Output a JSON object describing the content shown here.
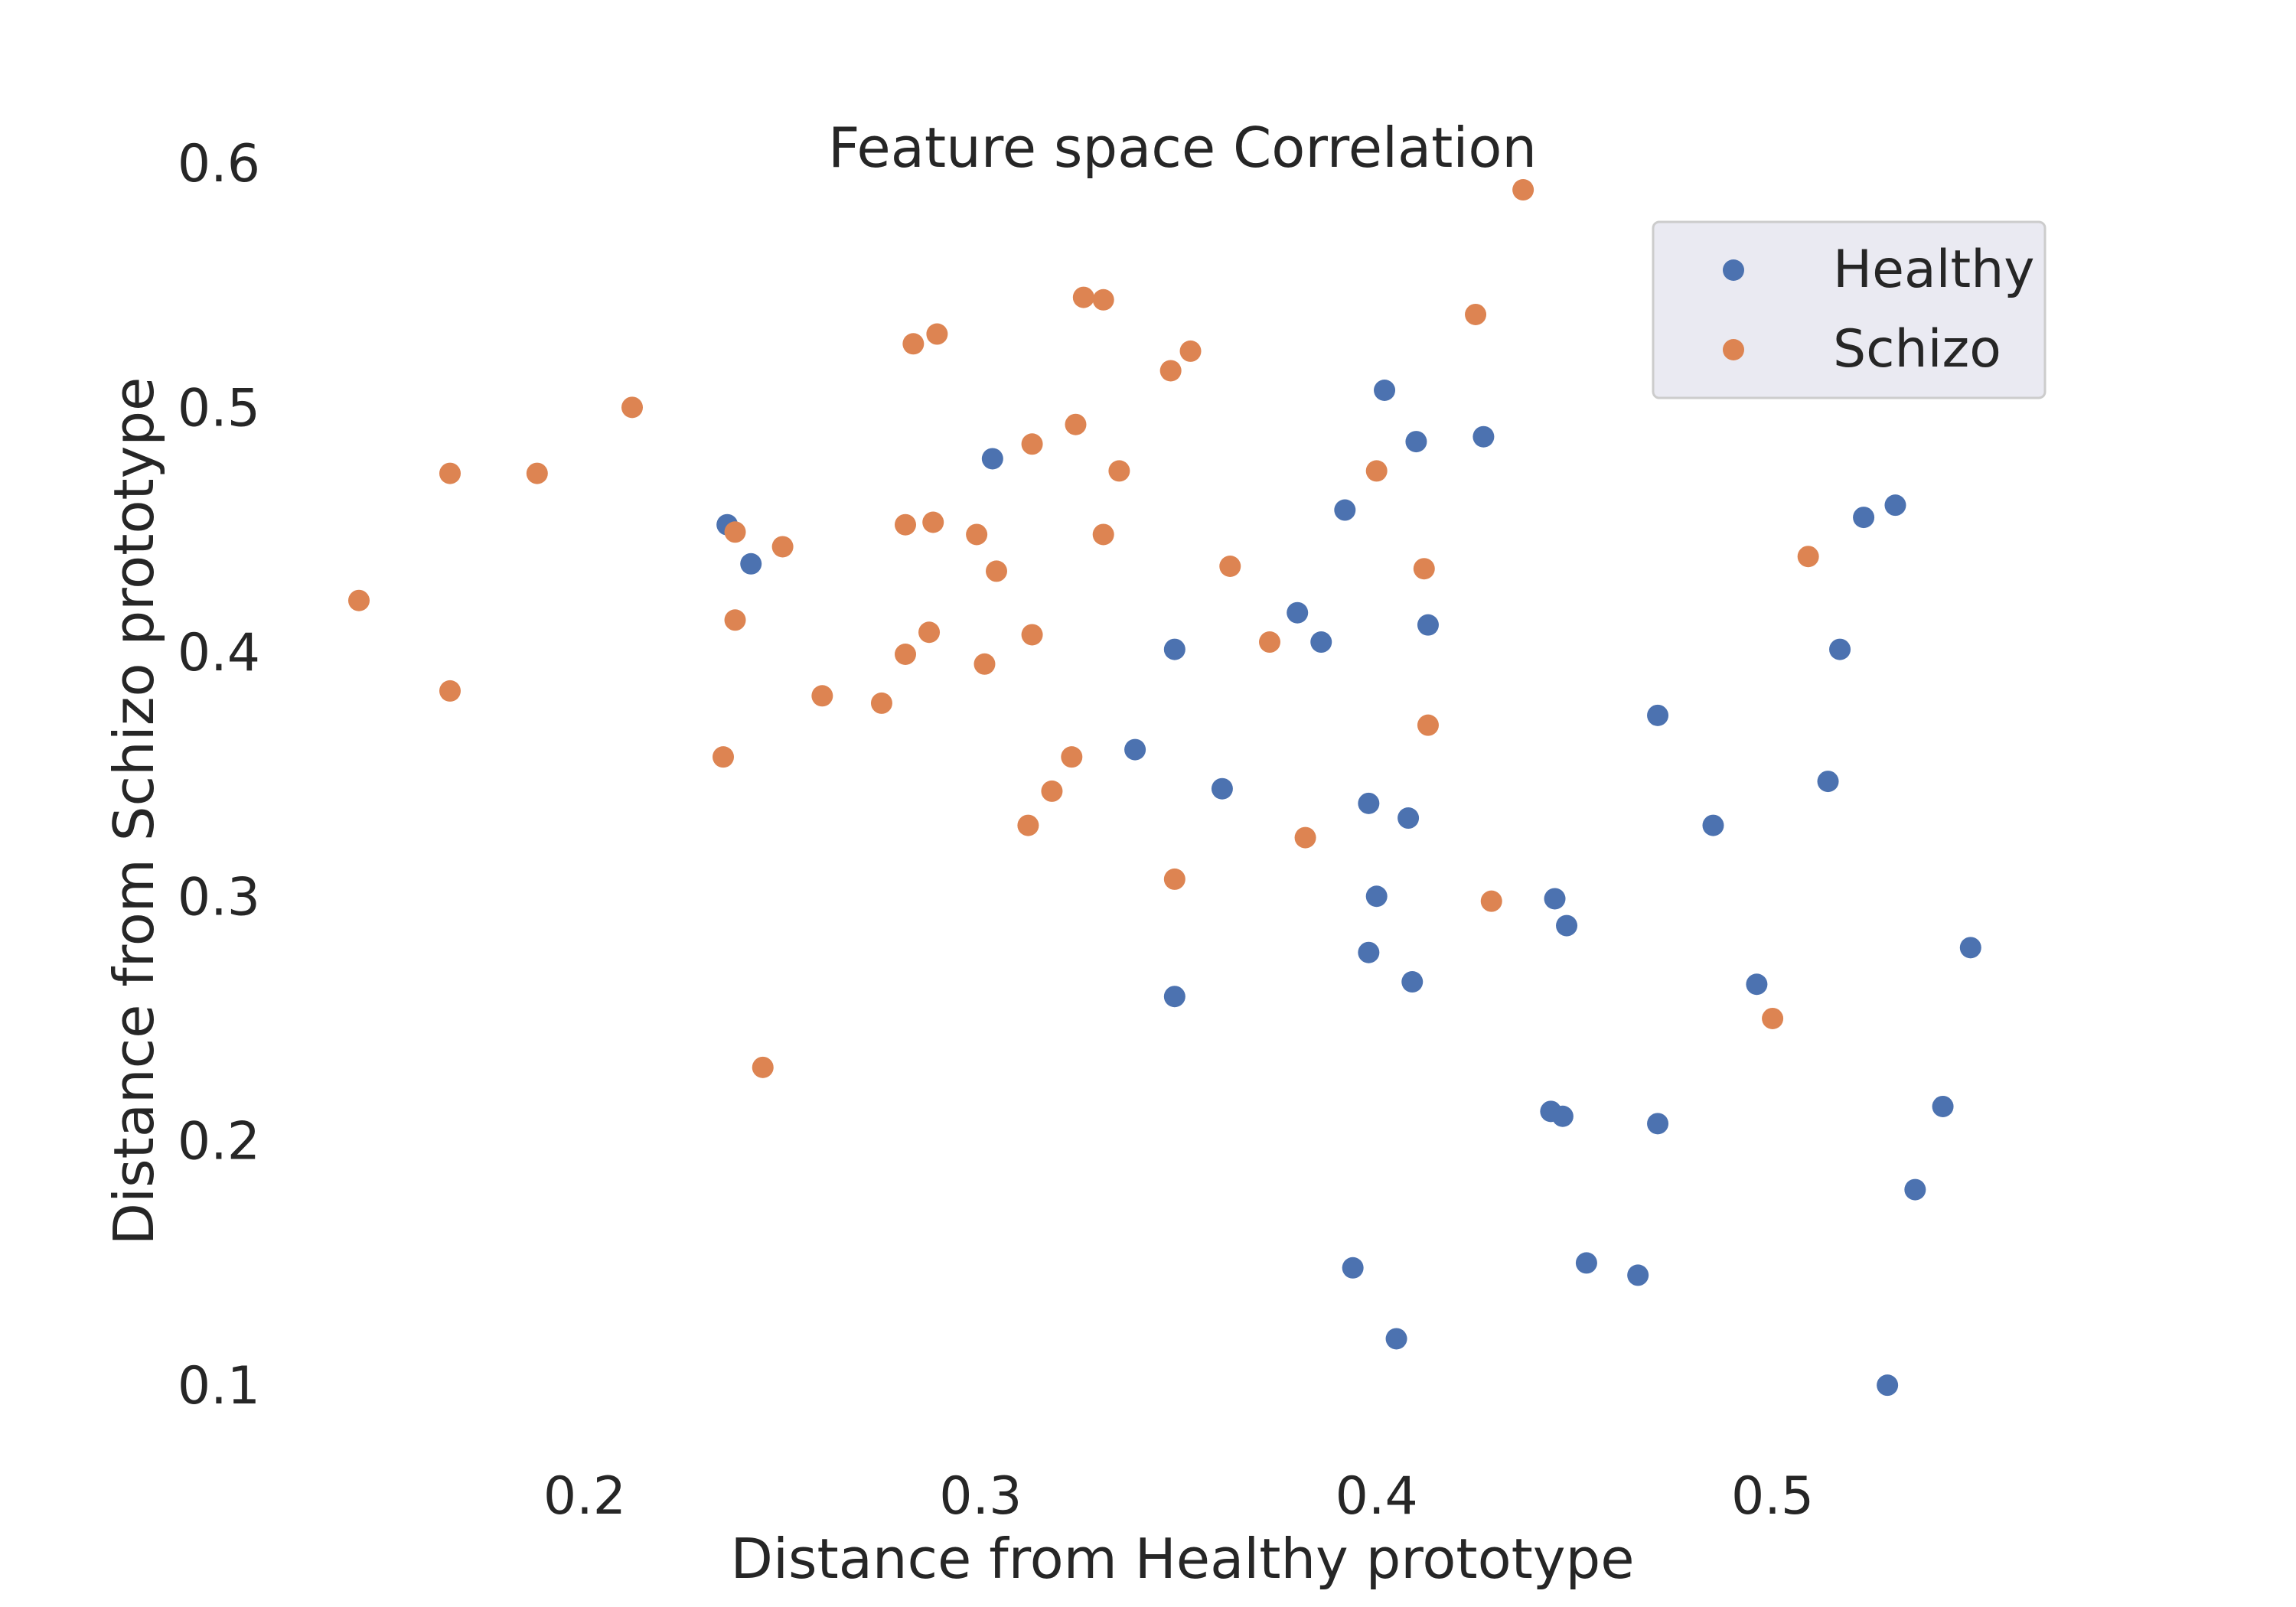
{
  "chart_data": {
    "type": "scatter",
    "title": "Feature space Correlation",
    "xlabel": "Distance from Healthy prototype",
    "ylabel": "Distance from Schizo prototype",
    "xlim": [
      0.12,
      0.58
    ],
    "ylim": [
      0.075,
      0.615
    ],
    "xticks": [
      0.2,
      0.3,
      0.4,
      0.5
    ],
    "yticks": [
      0.1,
      0.2,
      0.3,
      0.4,
      0.5,
      0.6
    ],
    "xtick_labels": [
      "0.2",
      "0.3",
      "0.4",
      "0.5"
    ],
    "ytick_labels": [
      "0.1",
      "0.2",
      "0.3",
      "0.4",
      "0.5",
      "0.6"
    ],
    "grid": false,
    "legend_position": "top-right",
    "series": [
      {
        "name": "Healthy",
        "color": "#4c72b0",
        "points": [
          [
            0.236,
            0.452
          ],
          [
            0.242,
            0.436
          ],
          [
            0.303,
            0.479
          ],
          [
            0.339,
            0.36
          ],
          [
            0.349,
            0.401
          ],
          [
            0.349,
            0.259
          ],
          [
            0.361,
            0.344
          ],
          [
            0.38,
            0.416
          ],
          [
            0.386,
            0.404
          ],
          [
            0.392,
            0.458
          ],
          [
            0.394,
            0.148
          ],
          [
            0.398,
            0.338
          ],
          [
            0.398,
            0.277
          ],
          [
            0.4,
            0.3
          ],
          [
            0.402,
            0.507
          ],
          [
            0.405,
            0.119
          ],
          [
            0.408,
            0.332
          ],
          [
            0.409,
            0.265
          ],
          [
            0.41,
            0.486
          ],
          [
            0.413,
            0.411
          ],
          [
            0.427,
            0.488
          ],
          [
            0.444,
            0.212
          ],
          [
            0.445,
            0.299
          ],
          [
            0.447,
            0.21
          ],
          [
            0.448,
            0.288
          ],
          [
            0.453,
            0.15
          ],
          [
            0.466,
            0.145
          ],
          [
            0.471,
            0.374
          ],
          [
            0.471,
            0.207
          ],
          [
            0.485,
            0.329
          ],
          [
            0.496,
            0.264
          ],
          [
            0.514,
            0.347
          ],
          [
            0.517,
            0.401
          ],
          [
            0.523,
            0.455
          ],
          [
            0.529,
            0.1
          ],
          [
            0.531,
            0.46
          ],
          [
            0.536,
            0.18
          ],
          [
            0.543,
            0.214
          ],
          [
            0.55,
            0.279
          ]
        ]
      },
      {
        "name": "Schizo",
        "color": "#dd8452",
        "points": [
          [
            0.143,
            0.421
          ],
          [
            0.166,
            0.473
          ],
          [
            0.166,
            0.384
          ],
          [
            0.188,
            0.473
          ],
          [
            0.212,
            0.5
          ],
          [
            0.235,
            0.357
          ],
          [
            0.238,
            0.449
          ],
          [
            0.238,
            0.413
          ],
          [
            0.245,
            0.23
          ],
          [
            0.25,
            0.443
          ],
          [
            0.26,
            0.382
          ],
          [
            0.275,
            0.379
          ],
          [
            0.281,
            0.452
          ],
          [
            0.281,
            0.399
          ],
          [
            0.283,
            0.526
          ],
          [
            0.287,
            0.408
          ],
          [
            0.288,
            0.453
          ],
          [
            0.289,
            0.53
          ],
          [
            0.299,
            0.448
          ],
          [
            0.301,
            0.395
          ],
          [
            0.304,
            0.433
          ],
          [
            0.312,
            0.329
          ],
          [
            0.313,
            0.407
          ],
          [
            0.313,
            0.485
          ],
          [
            0.318,
            0.343
          ],
          [
            0.323,
            0.357
          ],
          [
            0.324,
            0.493
          ],
          [
            0.326,
            0.545
          ],
          [
            0.331,
            0.448
          ],
          [
            0.331,
            0.544
          ],
          [
            0.335,
            0.474
          ],
          [
            0.348,
            0.515
          ],
          [
            0.349,
            0.307
          ],
          [
            0.353,
            0.523
          ],
          [
            0.363,
            0.435
          ],
          [
            0.373,
            0.404
          ],
          [
            0.382,
            0.324
          ],
          [
            0.4,
            0.474
          ],
          [
            0.412,
            0.434
          ],
          [
            0.413,
            0.37
          ],
          [
            0.425,
            0.538
          ],
          [
            0.429,
            0.298
          ],
          [
            0.437,
            0.589
          ],
          [
            0.5,
            0.25
          ],
          [
            0.509,
            0.439
          ]
        ]
      }
    ]
  }
}
